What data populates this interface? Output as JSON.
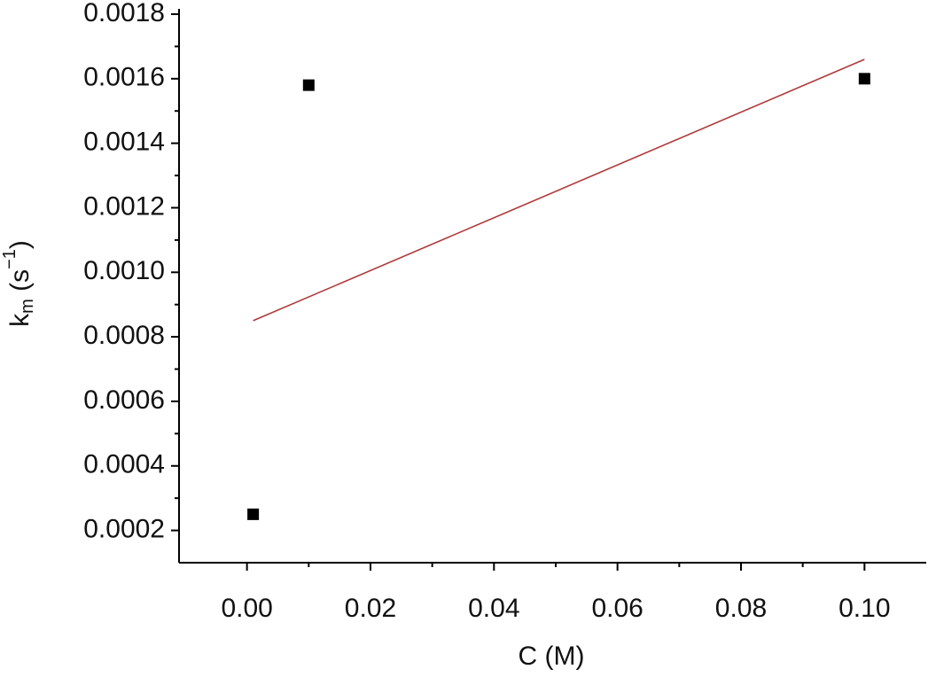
{
  "chart_data": {
    "type": "scatter",
    "xlabel": "C (M)",
    "ylabel": [
      "k",
      "m",
      " (s",
      "−1",
      ")"
    ],
    "xlim": [
      -0.011,
      0.11
    ],
    "ylim": [
      0.0001,
      0.0018
    ],
    "xticks": [
      {
        "value": 0,
        "label": "0.00"
      },
      0.02,
      0.04,
      0.06,
      0.08,
      {
        "value": 0.1,
        "label": "0.10"
      }
    ],
    "yticks": [
      0.0002,
      0.0004,
      0.0006,
      0.0008,
      {
        "value": 0.001,
        "label": "0.0010"
      },
      0.0012,
      0.0014,
      0.0016,
      0.0018
    ],
    "series": [
      {
        "type": "scatter",
        "color": "#000000",
        "x": [
          0.001,
          0.01,
          0.1
        ],
        "values": [
          0.00025,
          0.00158,
          0.0016
        ]
      },
      {
        "type": "line",
        "color": "#b03a3a",
        "x": [
          0.001,
          0.1
        ],
        "values": [
          0.00085,
          0.00166
        ]
      }
    ]
  }
}
